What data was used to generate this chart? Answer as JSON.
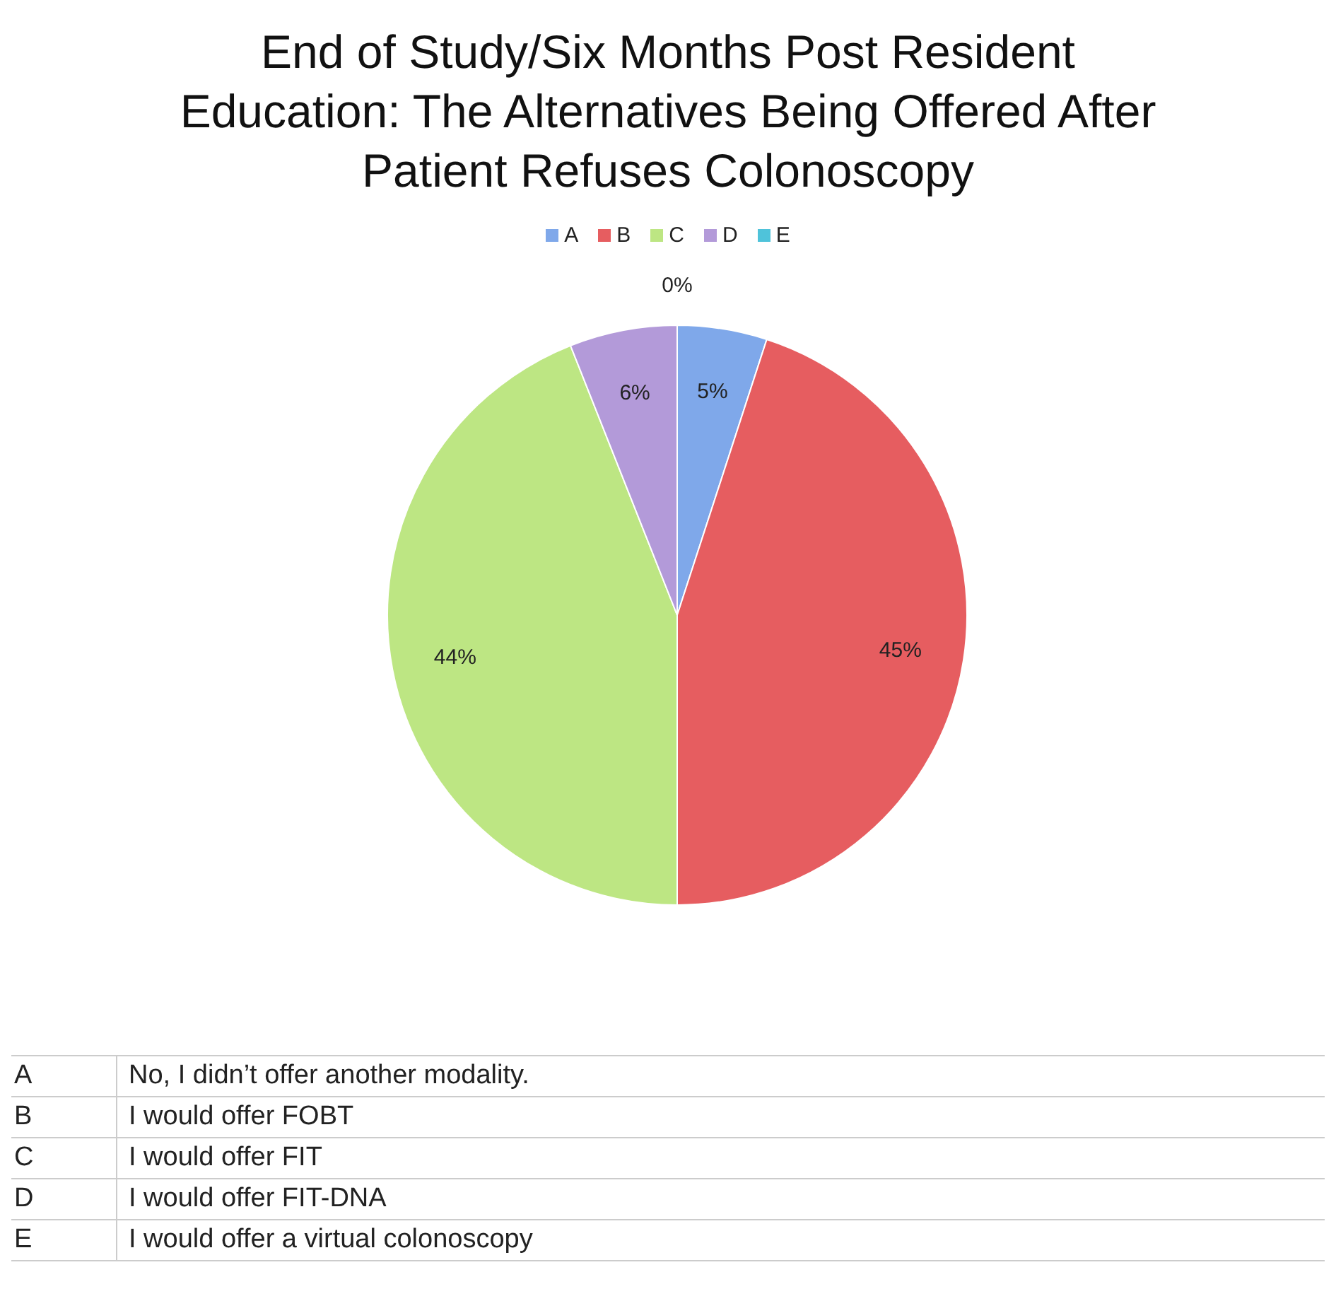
{
  "chart_data": {
    "type": "pie",
    "title": "End of Study/Six Months Post Resident Education: The Alternatives Being Offered After Patient Refuses Colonoscopy",
    "categories": [
      "A",
      "B",
      "C",
      "D",
      "E"
    ],
    "values": [
      5,
      45,
      44,
      6,
      0
    ],
    "value_labels": [
      "5%",
      "45%",
      "44%",
      "6%",
      "0%"
    ],
    "colors": [
      "#7fa8ea",
      "#e65d60",
      "#bde683",
      "#b39ad9",
      "#4fc3da"
    ],
    "legend": "top",
    "annotations": [
      "No, I didn’t offer another modality.",
      "I would offer FOBT",
      "I would offer FIT",
      "I would offer FIT-DNA",
      "I would offer a virtual colonoscopy"
    ]
  }
}
